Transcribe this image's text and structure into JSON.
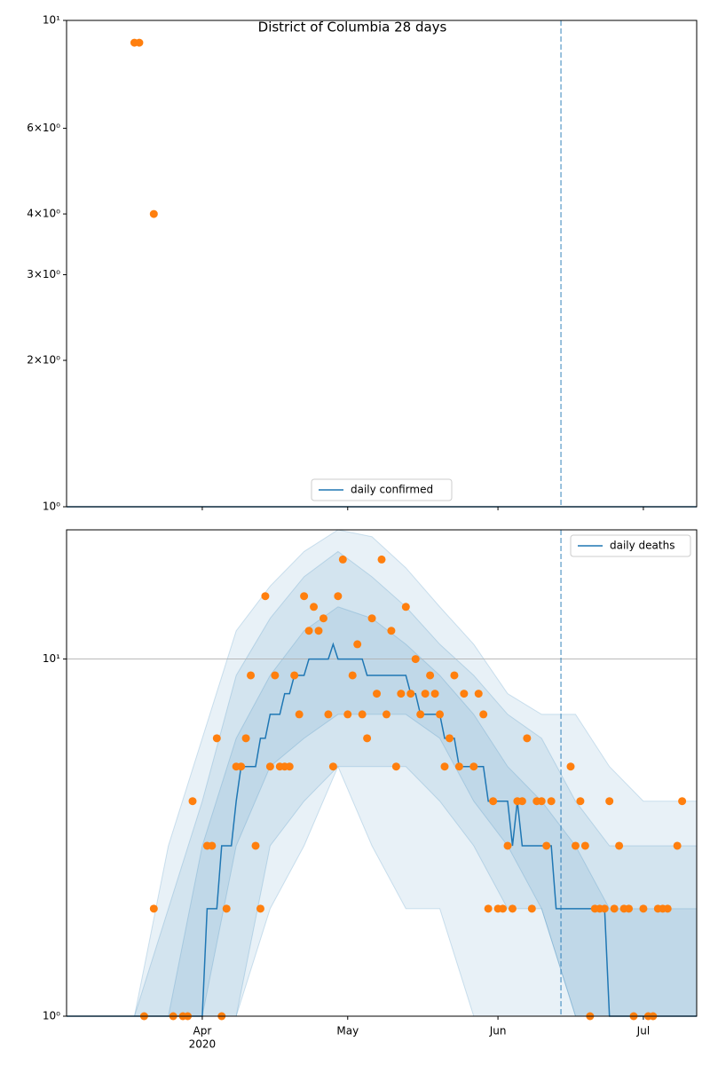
{
  "title": "District of Columbia 28 days",
  "chart_data": [
    {
      "type": "scatter",
      "log_y": true,
      "grid": false,
      "legend": "lower center",
      "xlim": [
        "2020-03-04",
        "2020-07-12"
      ],
      "ylim": [
        1,
        10
      ],
      "yticks": [
        {
          "value": 1,
          "label": "10⁰"
        },
        {
          "value": 2,
          "label": "2×10⁰"
        },
        {
          "value": 3,
          "label": "3×10⁰"
        },
        {
          "value": 4,
          "label": "4×10⁰"
        },
        {
          "value": 6,
          "label": "6×10⁰"
        },
        {
          "value": 10,
          "label": "10¹"
        }
      ],
      "vline": "2020-06-14",
      "series": [
        {
          "name": "daily confirmed",
          "kind": "line",
          "color": "#1f77b4",
          "x": [
            "2020-03-04",
            "2020-07-12"
          ],
          "values": [
            1,
            1
          ]
        },
        {
          "kind": "scatter",
          "color": "#ff7f0e",
          "x": [
            "2020-03-18",
            "2020-03-19",
            "2020-03-22"
          ],
          "values": [
            9,
            9,
            4
          ]
        }
      ]
    },
    {
      "type": "scatter",
      "log_y": true,
      "grid": true,
      "legend": "upper right",
      "xlim": [
        "2020-03-04",
        "2020-07-12"
      ],
      "ylim": [
        1,
        23
      ],
      "yticks": [
        {
          "value": 1,
          "label": "10⁰"
        },
        {
          "value": 10,
          "label": "10¹"
        }
      ],
      "xticks": [
        {
          "value": "2020-04-01",
          "label": "Apr"
        },
        {
          "value": "2020-05-01",
          "label": "May"
        },
        {
          "value": "2020-06-01",
          "label": "Jun"
        },
        {
          "value": "2020-07-01",
          "label": "Jul"
        }
      ],
      "x_offset_label": "2020",
      "vline": "2020-06-14",
      "band_color": "#1f77b4",
      "band_alpha": 0.1,
      "band_x": [
        "2020-03-18",
        "2020-03-25",
        "2020-04-01",
        "2020-04-08",
        "2020-04-15",
        "2020-04-22",
        "2020-04-29",
        "2020-05-06",
        "2020-05-13",
        "2020-05-20",
        "2020-05-27",
        "2020-06-03",
        "2020-06-10",
        "2020-06-17",
        "2020-06-24",
        "2020-07-01",
        "2020-07-08",
        "2020-07-12"
      ],
      "bands": [
        {
          "lower": [
            1,
            1,
            1,
            1,
            2,
            3,
            5,
            3,
            2,
            2,
            1,
            1,
            1,
            1,
            1,
            1,
            1,
            1
          ],
          "upper": [
            1,
            3,
            6,
            12,
            16,
            20,
            23,
            22,
            18,
            14,
            11,
            8,
            7,
            7,
            5,
            4,
            4,
            4
          ]
        },
        {
          "lower": [
            1,
            1,
            1,
            1,
            3,
            4,
            5,
            5,
            5,
            4,
            3,
            2,
            2,
            1,
            1,
            1,
            1,
            1
          ],
          "upper": [
            1,
            2,
            4,
            9,
            13,
            17,
            20,
            17,
            14,
            11,
            9,
            7,
            6,
            4,
            3,
            3,
            3,
            3
          ]
        },
        {
          "lower": [
            1,
            1,
            1,
            3,
            5,
            6,
            7,
            7,
            7,
            6,
            4,
            3,
            2,
            1,
            1,
            1,
            1,
            1
          ],
          "upper": [
            1,
            1,
            3,
            6,
            9,
            12,
            14,
            13,
            11,
            9,
            7,
            5,
            4,
            3,
            2,
            2,
            2,
            2
          ]
        }
      ],
      "series": [
        {
          "name": "daily deaths",
          "kind": "line",
          "color": "#1f77b4",
          "x": [
            "2020-03-04",
            "2020-04-01",
            "2020-04-02",
            "2020-04-04",
            "2020-04-05",
            "2020-04-07",
            "2020-04-08",
            "2020-04-09",
            "2020-04-12",
            "2020-04-13",
            "2020-04-14",
            "2020-04-15",
            "2020-04-17",
            "2020-04-18",
            "2020-04-19",
            "2020-04-20",
            "2020-04-22",
            "2020-04-23",
            "2020-04-27",
            "2020-04-28",
            "2020-04-29",
            "2020-05-04",
            "2020-05-05",
            "2020-05-13",
            "2020-05-14",
            "2020-05-15",
            "2020-05-16",
            "2020-05-20",
            "2020-05-21",
            "2020-05-23",
            "2020-05-24",
            "2020-05-29",
            "2020-05-30",
            "2020-06-03",
            "2020-06-04",
            "2020-06-05",
            "2020-06-06",
            "2020-06-12",
            "2020-06-13",
            "2020-06-23",
            "2020-06-24",
            "2020-07-12"
          ],
          "values": [
            1,
            1,
            2,
            2,
            3,
            3,
            4,
            5,
            5,
            6,
            6,
            7,
            7,
            8,
            8,
            9,
            9,
            10,
            10,
            11,
            10,
            10,
            9,
            9,
            8,
            8,
            7,
            7,
            6,
            6,
            5,
            5,
            4,
            4,
            3,
            4,
            3,
            3,
            2,
            2,
            1,
            1
          ]
        },
        {
          "kind": "scatter",
          "color": "#ff7f0e",
          "x": [
            "2020-03-20",
            "2020-03-22",
            "2020-03-26",
            "2020-03-28",
            "2020-03-29",
            "2020-03-30",
            "2020-04-02",
            "2020-04-03",
            "2020-04-04",
            "2020-04-05",
            "2020-04-06",
            "2020-04-08",
            "2020-04-09",
            "2020-04-10",
            "2020-04-11",
            "2020-04-12",
            "2020-04-13",
            "2020-04-14",
            "2020-04-15",
            "2020-04-16",
            "2020-04-17",
            "2020-04-18",
            "2020-04-19",
            "2020-04-20",
            "2020-04-21",
            "2020-04-22",
            "2020-04-23",
            "2020-04-24",
            "2020-04-25",
            "2020-04-26",
            "2020-04-27",
            "2020-04-28",
            "2020-04-29",
            "2020-04-30",
            "2020-05-01",
            "2020-05-02",
            "2020-05-03",
            "2020-05-04",
            "2020-05-05",
            "2020-05-06",
            "2020-05-07",
            "2020-05-08",
            "2020-05-09",
            "2020-05-10",
            "2020-05-11",
            "2020-05-12",
            "2020-05-13",
            "2020-05-14",
            "2020-05-15",
            "2020-05-16",
            "2020-05-17",
            "2020-05-18",
            "2020-05-19",
            "2020-05-20",
            "2020-05-21",
            "2020-05-22",
            "2020-05-23",
            "2020-05-24",
            "2020-05-25",
            "2020-05-27",
            "2020-05-28",
            "2020-05-29",
            "2020-05-30",
            "2020-05-31",
            "2020-06-01",
            "2020-06-02",
            "2020-06-03",
            "2020-06-04",
            "2020-06-05",
            "2020-06-06",
            "2020-06-07",
            "2020-06-08",
            "2020-06-09",
            "2020-06-10",
            "2020-06-11",
            "2020-06-12",
            "2020-06-16",
            "2020-06-17",
            "2020-06-18",
            "2020-06-19",
            "2020-06-20",
            "2020-06-21",
            "2020-06-22",
            "2020-06-23",
            "2020-06-24",
            "2020-06-25",
            "2020-06-26",
            "2020-06-27",
            "2020-06-28",
            "2020-06-29",
            "2020-07-01",
            "2020-07-02",
            "2020-07-03",
            "2020-07-04",
            "2020-07-05",
            "2020-07-06",
            "2020-07-08",
            "2020-07-09"
          ],
          "values": [
            1,
            2,
            1,
            1,
            1,
            4,
            3,
            3,
            6,
            1,
            2,
            5,
            5,
            6,
            9,
            3,
            2,
            15,
            5,
            9,
            5,
            5,
            5,
            9,
            7,
            15,
            12,
            14,
            12,
            13,
            7,
            5,
            15,
            19,
            7,
            9,
            11,
            7,
            6,
            13,
            8,
            19,
            7,
            12,
            5,
            8,
            14,
            8,
            10,
            7,
            8,
            9,
            8,
            7,
            5,
            6,
            9,
            5,
            8,
            5,
            8,
            7,
            2,
            4,
            2,
            2,
            3,
            2,
            4,
            4,
            6,
            2,
            4,
            4,
            3,
            4,
            5,
            3,
            4,
            3,
            1,
            2,
            2,
            2,
            4,
            2,
            3,
            2,
            2,
            1,
            2,
            1,
            1,
            2,
            2,
            2,
            3,
            4
          ]
        }
      ]
    }
  ]
}
